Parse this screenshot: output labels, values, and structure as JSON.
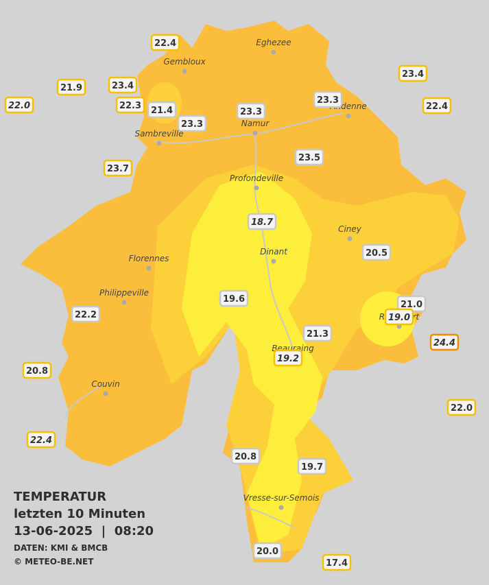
{
  "header": {
    "title": "TEMPERATUR",
    "subtitle": "letzten 10 Minuten",
    "datetime": "13-06-2025  |  08:20",
    "source": "DATEN: KMI & BMCB",
    "copyright": "© METEO-BE.NET"
  },
  "cities": [
    "Eghezee",
    "Gembloux",
    "Andenne",
    "Namur",
    "Sambreville",
    "Profondeville",
    "Ciney",
    "Dinant",
    "Florennes",
    "Philippeville",
    "Rochefort",
    "Beauraing",
    "Couvin",
    "Vresse-sur-Semois"
  ],
  "stations": [
    "22.4",
    "21.9",
    "22.0",
    "23.4",
    "22.3",
    "21.4",
    "23.3",
    "23.3",
    "23.3",
    "23.4",
    "22.4",
    "23.7",
    "23.5",
    "18.7",
    "20.5",
    "19.6",
    "21.0",
    "19.0",
    "22.2",
    "21.3",
    "24.4",
    "19.2",
    "20.8",
    "22.0",
    "22.4",
    "20.8",
    "19.7",
    "20.0",
    "17.4"
  ]
}
